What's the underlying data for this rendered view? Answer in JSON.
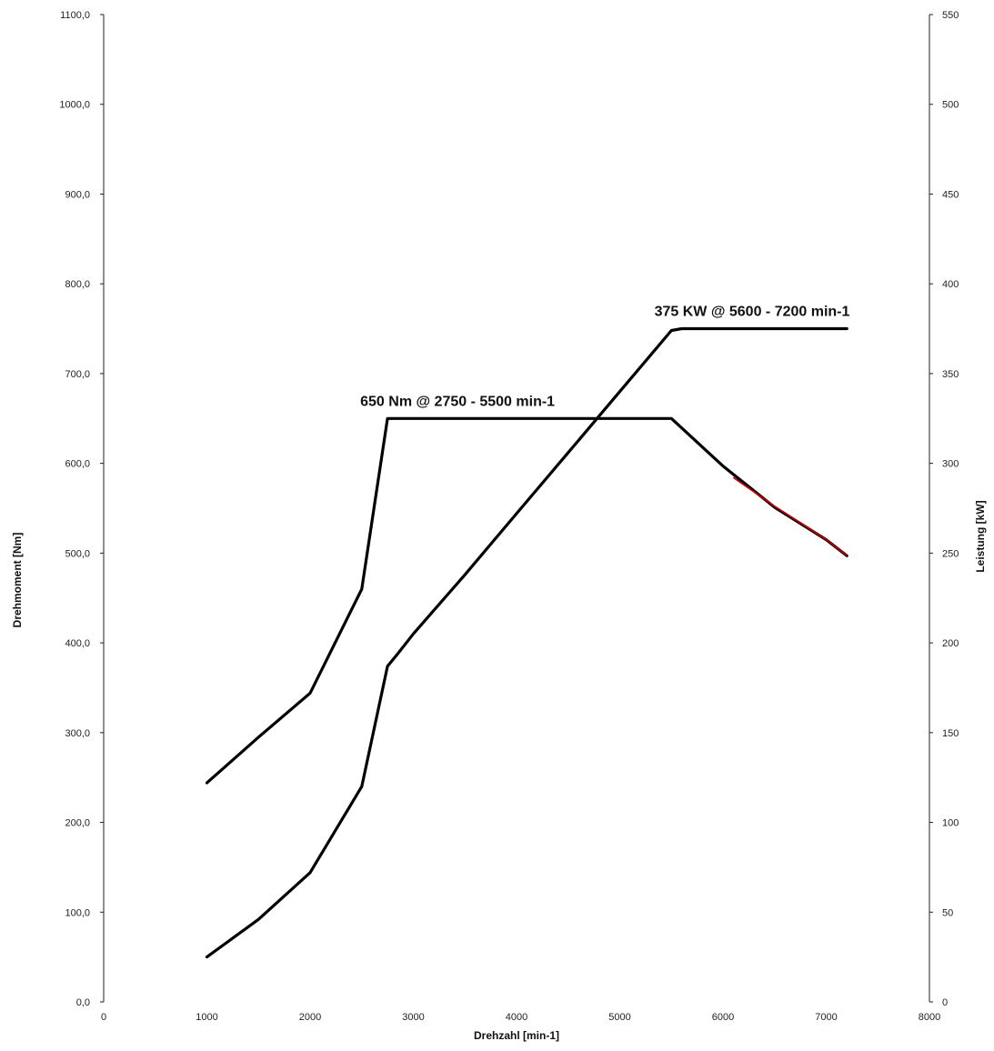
{
  "chart_data": {
    "type": "line",
    "title": "",
    "xlabel": "Drehzahl [min-1]",
    "ylabel_left": "Drehmoment [Nm]",
    "ylabel_right": "Leistung [kW]",
    "xlim": [
      0,
      8000
    ],
    "ylim_left": [
      0,
      1100
    ],
    "ylim_right": [
      0,
      550
    ],
    "x_ticks": [
      "0",
      "1000",
      "2000",
      "3000",
      "4000",
      "5000",
      "6000",
      "7000",
      "8000"
    ],
    "y_left_ticks": [
      "0,0",
      "100,0",
      "200,0",
      "300,0",
      "400,0",
      "500,0",
      "600,0",
      "700,0",
      "800,0",
      "900,0",
      "1000,0",
      "1100,0"
    ],
    "y_right_ticks": [
      "0",
      "50",
      "100",
      "150",
      "200",
      "250",
      "300",
      "350",
      "400",
      "450",
      "500",
      "550"
    ],
    "grid": false,
    "legend": "none",
    "series": [
      {
        "axis": "left",
        "color": "#000000",
        "x": [
          1000,
          1500,
          2000,
          2500,
          2750,
          3000,
          3500,
          4000,
          4500,
          5000,
          5500,
          6000,
          6500,
          7000,
          7200
        ],
        "y": [
          244,
          295,
          344,
          460,
          650,
          650,
          650,
          650,
          650,
          650,
          650,
          597,
          551,
          515,
          497
        ]
      },
      {
        "axis": "right",
        "color": "#000000",
        "x": [
          1000,
          1500,
          2000,
          2500,
          2750,
          2850,
          3000,
          3500,
          4000,
          4500,
          5000,
          5500,
          5600,
          6000,
          6500,
          7000,
          7200
        ],
        "y": [
          25,
          46,
          72,
          120,
          187,
          194,
          205,
          238,
          272,
          306,
          340,
          374,
          375,
          375,
          375,
          375,
          375
        ]
      }
    ],
    "highlight_segment": {
      "color": "#cc0000",
      "axis": "left",
      "x": [
        6100,
        6500,
        7000,
        7200
      ],
      "y": [
        585,
        553,
        516,
        498
      ]
    },
    "annotations": [
      {
        "text": "650 Nm @ 2750 - 5500 min-1",
        "x": 2750,
        "y": 650,
        "axis": "left"
      },
      {
        "text": "375 KW @ 5600 - 7200 min-1",
        "x": 5600,
        "y": 375,
        "axis": "right"
      }
    ]
  }
}
